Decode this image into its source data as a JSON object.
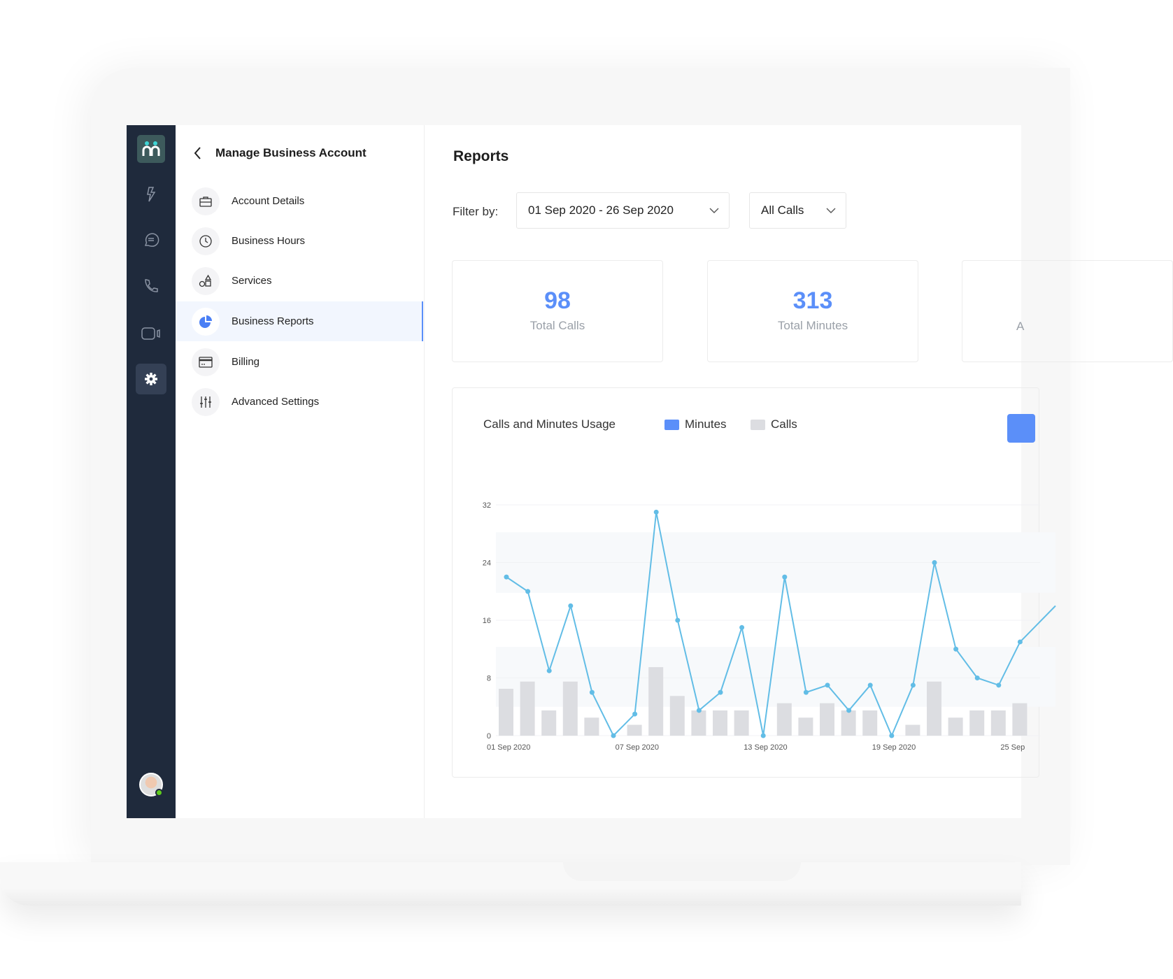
{
  "sidebar": {
    "header": "Manage Business Account",
    "items": [
      {
        "label": "Account Details",
        "icon": "briefcase-icon"
      },
      {
        "label": "Business Hours",
        "icon": "clock-icon"
      },
      {
        "label": "Services",
        "icon": "shapes-icon"
      },
      {
        "label": "Business Reports",
        "icon": "pie-chart-icon",
        "active": true
      },
      {
        "label": "Billing",
        "icon": "credit-card-icon"
      },
      {
        "label": "Advanced Settings",
        "icon": "sliders-icon"
      }
    ]
  },
  "rail": {
    "items": [
      "lightning-icon",
      "chat-icon",
      "phone-icon",
      "video-icon",
      "gear-icon"
    ],
    "active": "gear-icon"
  },
  "main": {
    "title": "Reports",
    "filter_label": "Filter by:",
    "date_range": "01 Sep 2020 - 26 Sep 2020",
    "call_type": "All Calls",
    "cards": [
      {
        "value": "98",
        "label": "Total Calls"
      },
      {
        "value": "313",
        "label": "Total Minutes"
      },
      {
        "value": "",
        "label": "A"
      }
    ]
  },
  "colors": {
    "accent": "#5b8ff9",
    "line": "#62bde6",
    "bar": "#dcdde1",
    "rail": "#1f2a3c",
    "online": "#5ecb1c"
  },
  "chart_data": {
    "type": "bar+line",
    "title": "Calls and Minutes Usage",
    "legend": [
      "Minutes",
      "Calls"
    ],
    "legend_placement": "top",
    "yticks": [
      "0",
      "8",
      "16",
      "24",
      "32"
    ],
    "ylim": [
      0,
      32
    ],
    "xtick_labels": [
      "01 Sep 2020",
      "07 Sep 2020",
      "13 Sep 2020",
      "19 Sep 2020",
      "25 Sep"
    ],
    "x": [
      "01 Sep 2020",
      "02 Sep 2020",
      "03 Sep 2020",
      "04 Sep 2020",
      "05 Sep 2020",
      "06 Sep 2020",
      "07 Sep 2020",
      "08 Sep 2020",
      "09 Sep 2020",
      "10 Sep 2020",
      "11 Sep 2020",
      "12 Sep 2020",
      "13 Sep 2020",
      "14 Sep 2020",
      "15 Sep 2020",
      "16 Sep 2020",
      "17 Sep 2020",
      "18 Sep 2020",
      "19 Sep 2020",
      "20 Sep 2020",
      "21 Sep 2020",
      "22 Sep 2020",
      "23 Sep 2020",
      "24 Sep 2020",
      "25 Sep 2020"
    ],
    "series": [
      {
        "name": "Minutes",
        "kind": "line",
        "values": [
          22,
          20,
          9,
          18,
          6,
          0,
          3,
          31,
          16,
          3.5,
          6,
          15,
          0,
          22,
          6,
          7,
          3.5,
          7,
          0,
          7,
          24,
          12,
          8,
          7,
          13
        ]
      },
      {
        "name": "Calls",
        "kind": "bar",
        "values": [
          6.5,
          7.5,
          3.5,
          7.5,
          2.5,
          0,
          1.5,
          9.5,
          5.5,
          3.5,
          3.5,
          3.5,
          0,
          4.5,
          2.5,
          4.5,
          3.5,
          3.5,
          0,
          1.5,
          7.5,
          2.5,
          3.5,
          3.5,
          4.5
        ]
      }
    ],
    "grid": true
  }
}
